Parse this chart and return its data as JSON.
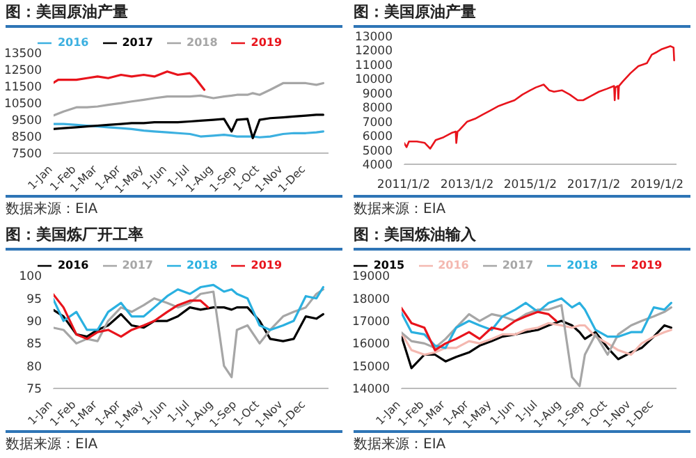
{
  "chart_data": [
    {
      "type": "line",
      "title": "图：美国原油产量",
      "annotations": [
        "数据来源：EIA"
      ],
      "legend": "top",
      "marker": "none",
      "line_style": "solid",
      "x": [
        "--01-01",
        "--01-15",
        "--02-01",
        "--02-15",
        "--03-01",
        "--03-15",
        "--04-01",
        "--04-15",
        "--05-01",
        "--05-15",
        "--06-01",
        "--06-15",
        "--07-01",
        "--07-15",
        "--08-01",
        "--08-15",
        "--08-25",
        "--09-01",
        "--09-15",
        "--09-22",
        "--10-01",
        "--10-15",
        "--11-01",
        "--11-15",
        "--12-01",
        "--12-15",
        "--12-24"
      ],
      "xlim": [
        "--01-01",
        "--12-31"
      ],
      "xticks": [
        {
          "value": "--01-01",
          "label": "1-Jan"
        },
        {
          "value": "--02-01",
          "label": "1-Feb"
        },
        {
          "value": "--03-01",
          "label": "1-Mar"
        },
        {
          "value": "--04-01",
          "label": "1-Apr"
        },
        {
          "value": "--05-01",
          "label": "1-May"
        },
        {
          "value": "--06-01",
          "label": "1-Jun"
        },
        {
          "value": "--07-01",
          "label": "1-Jul"
        },
        {
          "value": "--08-01",
          "label": "1-Aug"
        },
        {
          "value": "--09-01",
          "label": "1-Sep"
        },
        {
          "value": "--10-01",
          "label": "1-Oct"
        },
        {
          "value": "--11-01",
          "label": "1-Nov"
        },
        {
          "value": "--12-01",
          "label": "1-Dec"
        }
      ],
      "ylim": [
        7500,
        13500
      ],
      "yticks": [
        7500,
        8500,
        9500,
        10500,
        11500,
        12500,
        13500
      ],
      "series": [
        {
          "name": "2016",
          "color": "#3cb0e0",
          "values": [
            9250,
            9250,
            9200,
            9150,
            9100,
            9050,
            9000,
            8950,
            8850,
            8800,
            8750,
            8700,
            8650,
            8500,
            8550,
            8600,
            8550,
            8500,
            8500,
            8500,
            8450,
            8500,
            8650,
            8700,
            8700,
            8750,
            8800
          ]
        },
        {
          "name": "2017",
          "color": "#000000",
          "values": [
            8950,
            9000,
            9050,
            9100,
            9150,
            9200,
            9250,
            9300,
            9300,
            9350,
            9350,
            9350,
            9400,
            9450,
            9500,
            9550,
            8800,
            9500,
            9550,
            8400,
            9500,
            9600,
            9650,
            9700,
            9750,
            9800,
            9800
          ]
        },
        {
          "name": "2018",
          "color": "#a6a6a6",
          "values": [
            9750,
            10000,
            10250,
            10250,
            10300,
            10400,
            10500,
            10600,
            10700,
            10800,
            10900,
            10900,
            10900,
            10950,
            10800,
            10900,
            10950,
            11000,
            11000,
            11100,
            11000,
            11300,
            11700,
            11700,
            11700,
            11600,
            11700
          ]
        },
        {
          "name": "2019",
          "color": "#e8141c",
          "x": [
            "--01-01",
            "--01-08",
            "--02-01",
            "--02-15",
            "--03-01",
            "--03-15",
            "--04-01",
            "--04-15",
            "--05-01",
            "--05-15",
            "--06-01",
            "--06-15",
            "--07-01",
            "--07-08",
            "--07-20"
          ],
          "values": [
            11700,
            11900,
            11900,
            12000,
            12100,
            12000,
            12200,
            12100,
            12200,
            12100,
            12400,
            12200,
            12300,
            12000,
            11300
          ]
        }
      ]
    },
    {
      "type": "line",
      "title": "图：美国原油产量",
      "annotations": [
        "数据来源：EIA"
      ],
      "marker": "none",
      "line_style": "solid",
      "xlim": [
        "2011-01-02",
        "2019-08-15"
      ],
      "xticks": [
        {
          "value": "2011-01-02",
          "label": "2011/1/2"
        },
        {
          "value": "2013-01-02",
          "label": "2013/1/2"
        },
        {
          "value": "2015-01-02",
          "label": "2015/1/2"
        },
        {
          "value": "2017-01-02",
          "label": "2017/1/2"
        },
        {
          "value": "2019-01-02",
          "label": "2019/1/2"
        }
      ],
      "ylim": [
        4000,
        13000
      ],
      "yticks": [
        4000,
        5000,
        6000,
        7000,
        8000,
        9000,
        10000,
        11000,
        12000,
        13000
      ],
      "series": [
        {
          "color": "#e8141c",
          "x": [
            "2011-01-07",
            "2011-02-04",
            "2011-03-04",
            "2011-06-03",
            "2011-09-02",
            "2011-11-04",
            "2012-01-06",
            "2012-04-06",
            "2012-07-06",
            "2012-08-24",
            "2012-08-31",
            "2012-09-14",
            "2012-10-05",
            "2013-01-04",
            "2013-04-05",
            "2013-07-05",
            "2013-10-04",
            "2014-01-03",
            "2014-04-04",
            "2014-07-04",
            "2014-10-03",
            "2015-01-02",
            "2015-03-06",
            "2015-06-05",
            "2015-08-07",
            "2015-10-02",
            "2016-01-01",
            "2016-04-01",
            "2016-07-01",
            "2016-09-02",
            "2016-12-02",
            "2017-03-03",
            "2017-06-02",
            "2017-08-25",
            "2017-09-01",
            "2017-09-08",
            "2017-10-06",
            "2017-10-13",
            "2017-10-20",
            "2017-12-01",
            "2018-03-02",
            "2018-06-01",
            "2018-09-07",
            "2018-11-02",
            "2019-01-04",
            "2019-03-01",
            "2019-06-07",
            "2019-07-12",
            "2019-07-19"
          ],
          "values": [
            5500,
            5200,
            5600,
            5600,
            5500,
            5100,
            5700,
            5900,
            6200,
            6300,
            5500,
            6300,
            6400,
            7000,
            7200,
            7500,
            7800,
            8100,
            8300,
            8500,
            8900,
            9200,
            9400,
            9600,
            9200,
            9100,
            9200,
            8900,
            8500,
            8500,
            8800,
            9100,
            9300,
            9500,
            8500,
            9400,
            9500,
            8600,
            9500,
            9800,
            10400,
            10900,
            11100,
            11700,
            11900,
            12100,
            12300,
            12200,
            11300
          ]
        }
      ]
    },
    {
      "type": "line",
      "title": "图：美国炼厂开工率",
      "annotations": [
        "数据来源：EIA"
      ],
      "legend": "top",
      "marker": "none",
      "line_style": "solid",
      "x": [
        "--01-01",
        "--01-15",
        "--02-01",
        "--02-15",
        "--03-01",
        "--03-15",
        "--04-01",
        "--04-15",
        "--05-01",
        "--05-15",
        "--06-01",
        "--06-15",
        "--07-01",
        "--07-15",
        "--08-01",
        "--08-15",
        "--08-25",
        "--09-01",
        "--09-15",
        "--10-01",
        "--10-15",
        "--11-01",
        "--11-15",
        "--12-01",
        "--12-15",
        "--12-24"
      ],
      "xlim": [
        "--01-01",
        "--12-31"
      ],
      "xticks": [
        {
          "value": "--01-01",
          "label": "1-Jan"
        },
        {
          "value": "--02-01",
          "label": "1-Feb"
        },
        {
          "value": "--03-01",
          "label": "1-Mar"
        },
        {
          "value": "--04-01",
          "label": "1-Apr"
        },
        {
          "value": "--05-01",
          "label": "1-May"
        },
        {
          "value": "--06-01",
          "label": "1-Jun"
        },
        {
          "value": "--07-01",
          "label": "1-Jul"
        },
        {
          "value": "--08-01",
          "label": "1-Aug"
        },
        {
          "value": "--09-01",
          "label": "1-Sep"
        },
        {
          "value": "--10-01",
          "label": "1-Oct"
        },
        {
          "value": "--11-01",
          "label": "1-Nov"
        },
        {
          "value": "--12-01",
          "label": "1-Dec"
        }
      ],
      "ylim": [
        75,
        100
      ],
      "yticks": [
        75,
        80,
        85,
        90,
        95,
        100
      ],
      "series": [
        {
          "name": "2016",
          "color": "#000000",
          "values": [
            92.5,
            91,
            87,
            86.5,
            88,
            89,
            91.5,
            89,
            88.5,
            90,
            90,
            91,
            93,
            92.5,
            93,
            93,
            92.5,
            93,
            93,
            90,
            86,
            85.5,
            86,
            91,
            90.5,
            91.5
          ]
        },
        {
          "name": "2017",
          "color": "#a6a6a6",
          "values": [
            88.5,
            88,
            85,
            86,
            85.5,
            90,
            93,
            92,
            93.5,
            95,
            94,
            93,
            94,
            96,
            96.5,
            80,
            77.5,
            88,
            89,
            85,
            88,
            91,
            92,
            93,
            96,
            97
          ]
        },
        {
          "name": "2018",
          "color": "#2ab0e0",
          "values": [
            95,
            90,
            92,
            88,
            88,
            92,
            94,
            91,
            91,
            93,
            95.5,
            97,
            96,
            97.5,
            98,
            96.5,
            97,
            96,
            95,
            89,
            88,
            89,
            90,
            95.5,
            95,
            97.5
          ]
        },
        {
          "name": "2019",
          "color": "#e8141c",
          "x": [
            "--01-01",
            "--01-15",
            "--02-01",
            "--02-15",
            "--03-01",
            "--03-15",
            "--04-01",
            "--04-15",
            "--05-01",
            "--05-15",
            "--06-01",
            "--06-15",
            "--07-01",
            "--07-15",
            "--07-25"
          ],
          "values": [
            96,
            93,
            87,
            86,
            87.5,
            88,
            86.5,
            88,
            89,
            90,
            92,
            93.5,
            94.5,
            94.5,
            93
          ]
        }
      ]
    },
    {
      "type": "line",
      "title": "图：美国炼油输入",
      "annotations": [
        "数据来源：EIA"
      ],
      "legend": "top",
      "marker": "none",
      "line_style": "solid",
      "x": [
        "--01-01",
        "--01-15",
        "--02-01",
        "--02-15",
        "--03-01",
        "--03-15",
        "--04-01",
        "--04-15",
        "--05-01",
        "--05-15",
        "--06-01",
        "--06-15",
        "--07-01",
        "--07-15",
        "--08-01",
        "--08-15",
        "--08-25",
        "--09-01",
        "--09-15",
        "--10-01",
        "--10-15",
        "--11-01",
        "--11-15",
        "--12-01",
        "--12-15",
        "--12-24"
      ],
      "xlim": [
        "--01-01",
        "--12-31"
      ],
      "xticks": [
        {
          "value": "--01-01",
          "label": "1-Jan"
        },
        {
          "value": "--02-01",
          "label": "1-Feb"
        },
        {
          "value": "--03-01",
          "label": "1-Mar"
        },
        {
          "value": "--04-01",
          "label": "1-Apr"
        },
        {
          "value": "--05-01",
          "label": "1-May"
        },
        {
          "value": "--06-01",
          "label": "1-Jun"
        },
        {
          "value": "--07-01",
          "label": "1-Jul"
        },
        {
          "value": "--08-01",
          "label": "1-Aug"
        },
        {
          "value": "--09-01",
          "label": "1-Sep"
        },
        {
          "value": "--10-01",
          "label": "1-Oct"
        },
        {
          "value": "--11-01",
          "label": "1-Nov"
        },
        {
          "value": "--12-01",
          "label": "1-Dec"
        }
      ],
      "ylim": [
        14000,
        19000
      ],
      "yticks": [
        14000,
        15000,
        16000,
        17000,
        18000,
        19000
      ],
      "series": [
        {
          "name": "2015",
          "color": "#000000",
          "values": [
            16400,
            14900,
            15500,
            15500,
            15200,
            15400,
            15600,
            15900,
            16100,
            16300,
            16400,
            16500,
            16600,
            16800,
            17000,
            16800,
            16500,
            16200,
            16500,
            15800,
            15300,
            15600,
            15800,
            16300,
            16800,
            16700
          ]
        },
        {
          "name": "2016",
          "color": "#f4b8b0",
          "values": [
            16500,
            15700,
            15500,
            15600,
            15800,
            15800,
            16100,
            16000,
            16200,
            16400,
            16400,
            16600,
            16700,
            16900,
            16800,
            16700,
            16800,
            16800,
            16300,
            16000,
            15700,
            15500,
            16000,
            16300,
            16500,
            16600
          ]
        },
        {
          "name": "2017",
          "color": "#a6a6a6",
          "values": [
            16500,
            16100,
            16000,
            15800,
            16200,
            16700,
            17300,
            17000,
            17300,
            17200,
            17000,
            17300,
            17500,
            17500,
            17700,
            14500,
            14100,
            15500,
            16400,
            15500,
            16400,
            16800,
            17000,
            17200,
            17400,
            17600
          ]
        },
        {
          "name": "2018",
          "color": "#2ab0e0",
          "values": [
            17400,
            16500,
            16400,
            15900,
            15800,
            16700,
            17000,
            16800,
            16600,
            17200,
            17500,
            17800,
            17400,
            17800,
            18000,
            17600,
            17800,
            17500,
            16600,
            16300,
            16300,
            16500,
            16500,
            17600,
            17500,
            17800
          ]
        },
        {
          "name": "2019",
          "color": "#e8141c",
          "x": [
            "--01-01",
            "--01-15",
            "--02-01",
            "--02-15",
            "--03-01",
            "--03-15",
            "--04-01",
            "--04-15",
            "--05-01",
            "--05-15",
            "--06-01",
            "--06-15",
            "--07-01",
            "--07-15",
            "--07-25"
          ],
          "values": [
            17600,
            16900,
            16700,
            15700,
            16000,
            16200,
            16500,
            16200,
            16700,
            16600,
            17000,
            17200,
            17400,
            17300,
            17000
          ]
        }
      ]
    }
  ]
}
